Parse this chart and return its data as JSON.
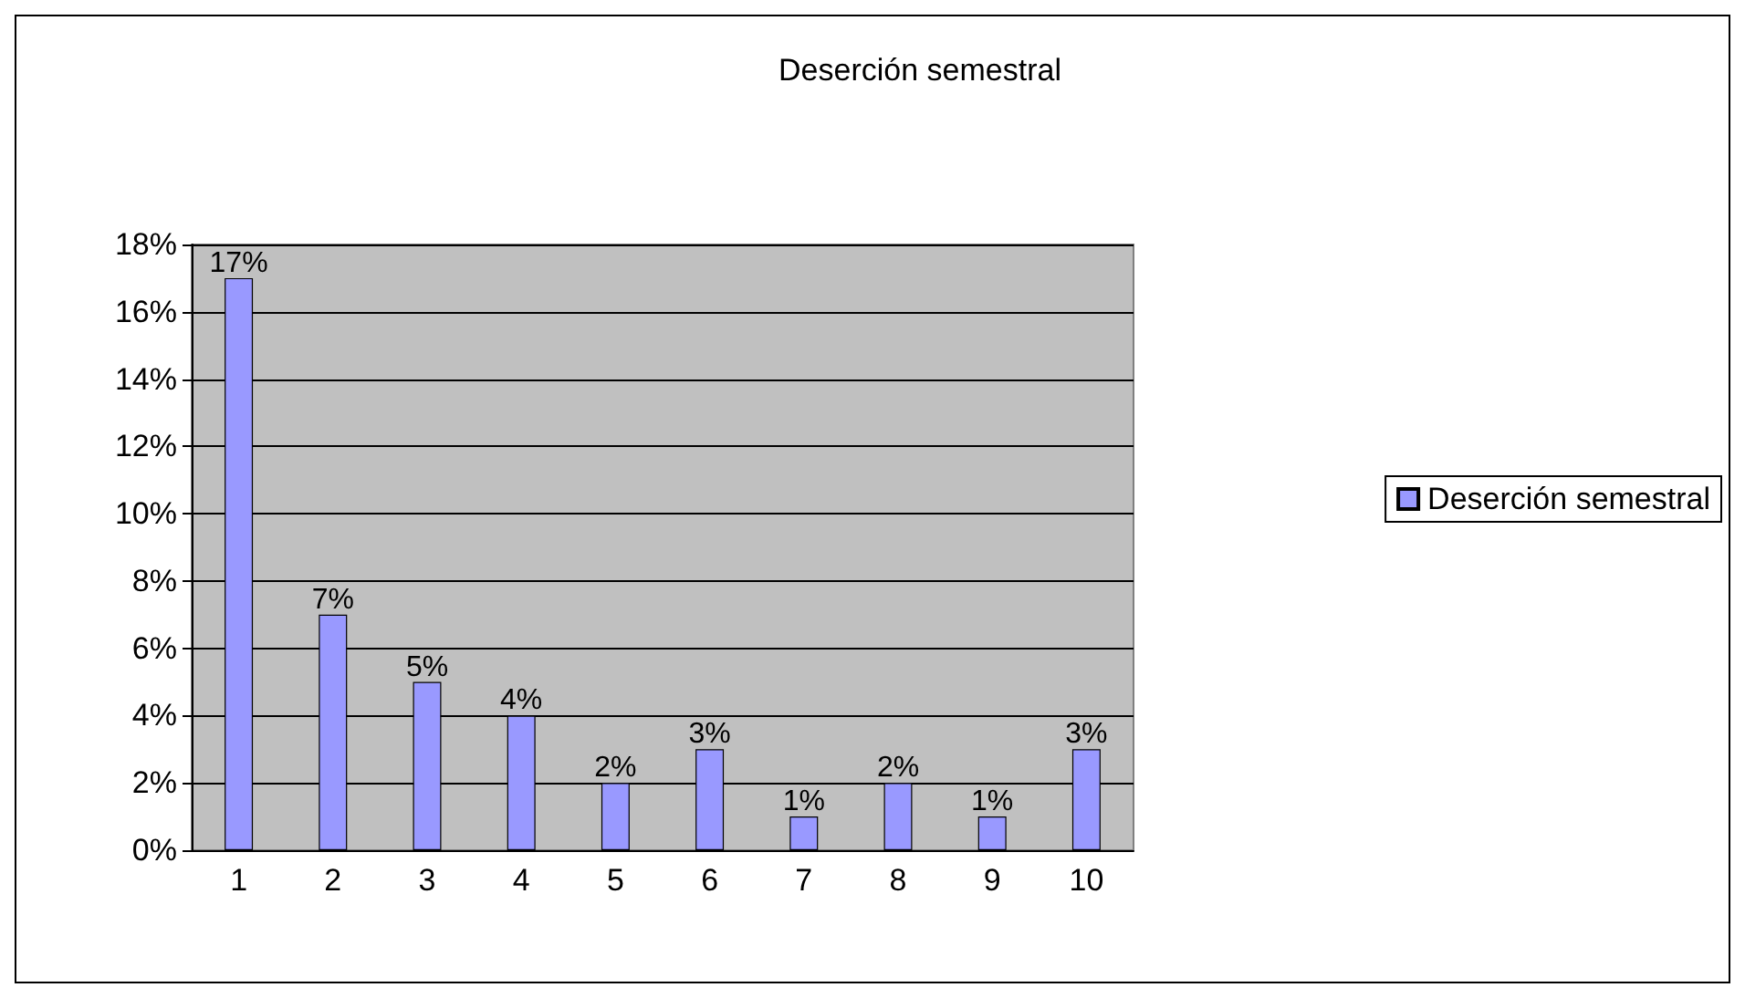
{
  "chart_data": {
    "type": "bar",
    "title": "Deserción semestral",
    "categories": [
      "1",
      "2",
      "3",
      "4",
      "5",
      "6",
      "7",
      "8",
      "9",
      "10"
    ],
    "series": [
      {
        "name": "Deserción semestral",
        "color": "#9999ff",
        "values": [
          17,
          7,
          5,
          4,
          2,
          3,
          1,
          2,
          1,
          3
        ],
        "value_labels": [
          "17%",
          "7%",
          "5%",
          "4%",
          "2%",
          "3%",
          "1%",
          "2%",
          "1%",
          "3%"
        ]
      }
    ],
    "ylim": [
      0,
      18
    ],
    "yticks": [
      {
        "value": 0,
        "label": "0%"
      },
      {
        "value": 2,
        "label": "2%"
      },
      {
        "value": 4,
        "label": "4%"
      },
      {
        "value": 6,
        "label": "6%"
      },
      {
        "value": 8,
        "label": "8%"
      },
      {
        "value": 10,
        "label": "10%"
      },
      {
        "value": 12,
        "label": "12%"
      },
      {
        "value": 14,
        "label": "14%"
      },
      {
        "value": 16,
        "label": "16%"
      },
      {
        "value": 18,
        "label": "18%"
      }
    ],
    "grid": "y",
    "legend": "right"
  }
}
